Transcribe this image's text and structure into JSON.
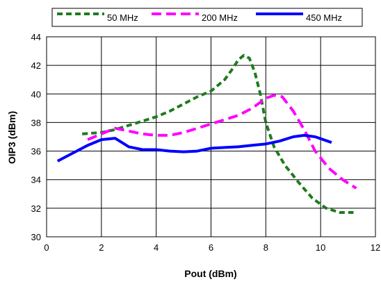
{
  "chart_data": {
    "type": "line",
    "xlabel": "Pout (dBm)",
    "ylabel": "OIP3 (dBm)",
    "xlim": [
      0,
      12
    ],
    "ylim": [
      30,
      44
    ],
    "x_ticks": [
      0,
      2,
      4,
      6,
      8,
      10,
      12
    ],
    "y_ticks": [
      30,
      32,
      34,
      36,
      38,
      40,
      42,
      44
    ],
    "grid": true,
    "legend_position": "top",
    "series": [
      {
        "name": "50 MHz",
        "color": "#1e7b1e",
        "style": "dashed",
        "points": [
          [
            1.3,
            37.2
          ],
          [
            2.0,
            37.3
          ],
          [
            2.5,
            37.5
          ],
          [
            3.0,
            37.8
          ],
          [
            3.5,
            38.1
          ],
          [
            4.0,
            38.4
          ],
          [
            4.5,
            38.8
          ],
          [
            5.0,
            39.3
          ],
          [
            5.5,
            39.8
          ],
          [
            6.0,
            40.2
          ],
          [
            6.5,
            41.0
          ],
          [
            6.8,
            41.8
          ],
          [
            7.0,
            42.4
          ],
          [
            7.2,
            42.7
          ],
          [
            7.4,
            42.5
          ],
          [
            7.6,
            41.5
          ],
          [
            7.8,
            40.0
          ],
          [
            8.0,
            38.0
          ],
          [
            8.3,
            36.3
          ],
          [
            8.7,
            35.0
          ],
          [
            9.2,
            33.8
          ],
          [
            9.7,
            32.7
          ],
          [
            10.2,
            32.0
          ],
          [
            10.7,
            31.7
          ],
          [
            11.2,
            31.7
          ]
        ]
      },
      {
        "name": "200 MHz",
        "color": "#ff00ff",
        "style": "dashed",
        "points": [
          [
            1.5,
            36.8
          ],
          [
            2.0,
            37.2
          ],
          [
            2.5,
            37.6
          ],
          [
            3.0,
            37.4
          ],
          [
            3.5,
            37.2
          ],
          [
            4.0,
            37.1
          ],
          [
            4.5,
            37.1
          ],
          [
            5.0,
            37.3
          ],
          [
            5.5,
            37.6
          ],
          [
            6.0,
            37.9
          ],
          [
            6.5,
            38.2
          ],
          [
            7.0,
            38.5
          ],
          [
            7.5,
            39.0
          ],
          [
            8.0,
            39.7
          ],
          [
            8.3,
            39.9
          ],
          [
            8.6,
            39.8
          ],
          [
            9.0,
            38.8
          ],
          [
            9.4,
            37.5
          ],
          [
            9.8,
            36.0
          ],
          [
            10.3,
            34.8
          ],
          [
            10.8,
            34.0
          ],
          [
            11.3,
            33.4
          ]
        ]
      },
      {
        "name": "450 MHz",
        "color": "#0000ff",
        "style": "solid",
        "points": [
          [
            0.4,
            35.3
          ],
          [
            1.0,
            35.9
          ],
          [
            1.5,
            36.4
          ],
          [
            2.0,
            36.8
          ],
          [
            2.5,
            36.9
          ],
          [
            3.0,
            36.3
          ],
          [
            3.5,
            36.1
          ],
          [
            4.0,
            36.1
          ],
          [
            4.5,
            36.0
          ],
          [
            5.0,
            35.95
          ],
          [
            5.5,
            36.0
          ],
          [
            6.0,
            36.2
          ],
          [
            6.5,
            36.25
          ],
          [
            7.0,
            36.3
          ],
          [
            7.5,
            36.4
          ],
          [
            8.0,
            36.5
          ],
          [
            8.5,
            36.7
          ],
          [
            9.0,
            37.0
          ],
          [
            9.4,
            37.1
          ],
          [
            9.8,
            37.0
          ],
          [
            10.4,
            36.6
          ]
        ]
      }
    ]
  }
}
